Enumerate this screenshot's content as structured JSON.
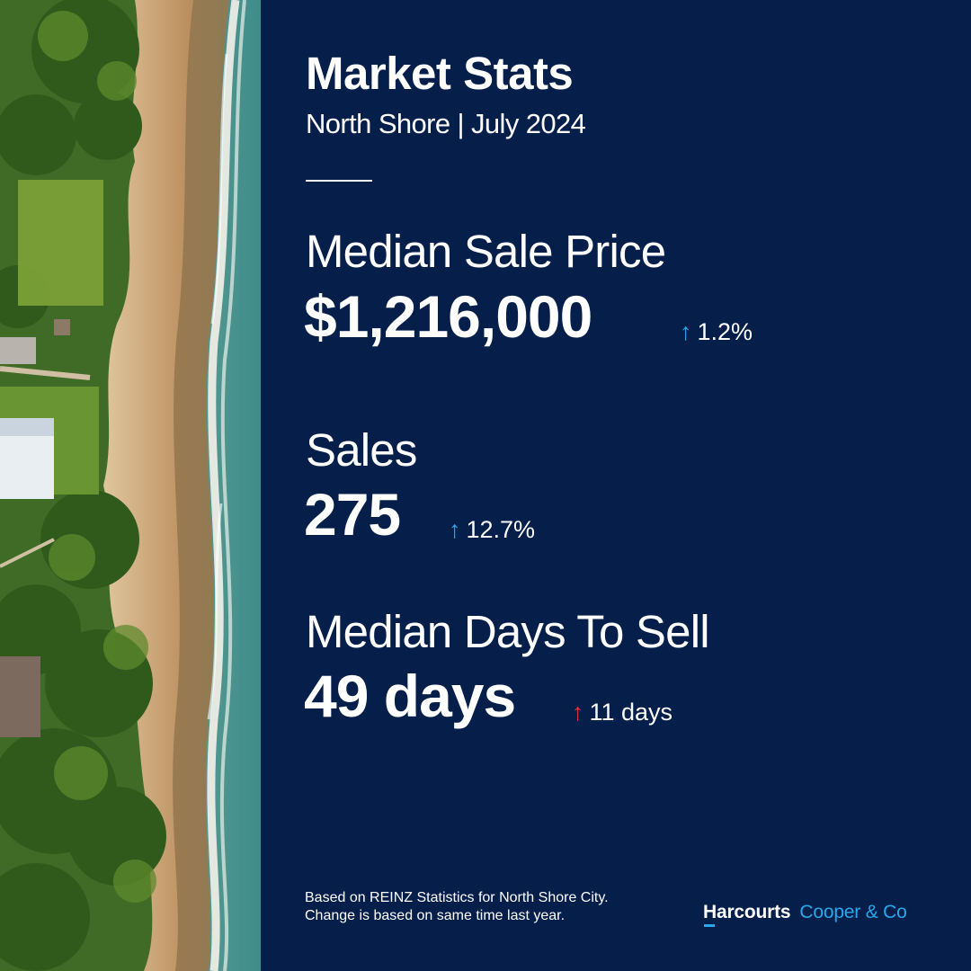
{
  "header": {
    "title": "Market Stats",
    "subtitle": "North Shore | July 2024"
  },
  "stats": [
    {
      "label": "Median Sale Price",
      "value": "$1,216,000",
      "change": "1.2%",
      "direction": "up",
      "color": "#2aa8ea"
    },
    {
      "label": "Sales",
      "value": "275",
      "change": "12.7%",
      "direction": "up",
      "color": "#2aa8ea"
    },
    {
      "label": "Median Days To Sell",
      "value": "49 days",
      "change": "11 days",
      "direction": "up",
      "color": "#e0343a"
    }
  ],
  "footnote": {
    "line1": "Based on REINZ Statistics for North Shore City.",
    "line2": "Change is based on same time last year."
  },
  "brand": {
    "name": "Harcourts",
    "office": "Cooper & Co"
  },
  "colors": {
    "background": "#051e4a",
    "accent": "#2aa8ea",
    "negative": "#e0343a"
  },
  "icons": {
    "up_arrow": "up-arrow-icon"
  }
}
